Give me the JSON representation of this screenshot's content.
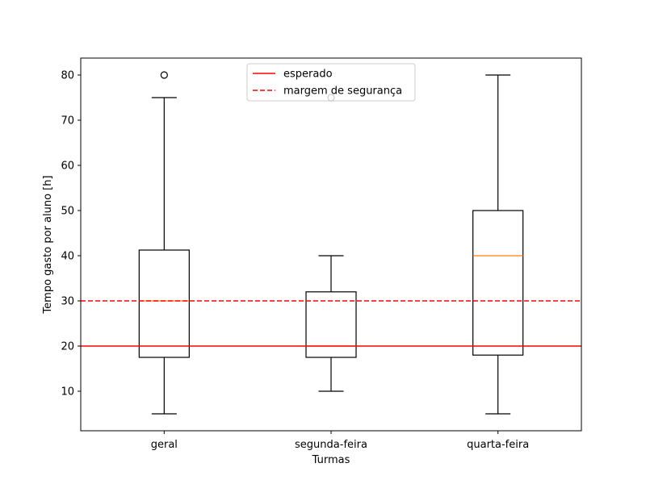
{
  "chart_data": {
    "type": "boxplot",
    "xlabel": "Turmas",
    "ylabel": "Tempo gasto por aluno [h]",
    "ylim": [
      1.25,
      83.75
    ],
    "yticks": [
      10,
      20,
      30,
      40,
      50,
      60,
      70,
      80
    ],
    "categories": [
      "geral",
      "segunda-feira",
      "quarta-feira"
    ],
    "boxes": [
      {
        "name": "geral",
        "whisker_low": 5,
        "q1": 17.5,
        "median": 30,
        "q3": 41.25,
        "whisker_high": 75,
        "outliers": [
          80
        ]
      },
      {
        "name": "segunda-feira",
        "whisker_low": 10,
        "q1": 17.5,
        "median": 20,
        "q3": 32,
        "whisker_high": 40,
        "outliers": [
          75
        ]
      },
      {
        "name": "quarta-feira",
        "whisker_low": 5,
        "q1": 18,
        "median": 40,
        "q3": 50,
        "whisker_high": 80,
        "outliers": []
      }
    ],
    "reference_lines": [
      {
        "name": "esperado",
        "value": 20,
        "style": "solid",
        "color": "#ff0000"
      },
      {
        "name": "margem de segurança",
        "value": 30,
        "style": "dashed",
        "color": "#ff0000"
      }
    ],
    "legend": {
      "placement": "upper center",
      "entries": [
        "esperado",
        "margem de segurança"
      ]
    },
    "colors": {
      "box": "#000000",
      "median": "#ff7f0e",
      "reference": "#ff0000"
    },
    "grid": false
  }
}
